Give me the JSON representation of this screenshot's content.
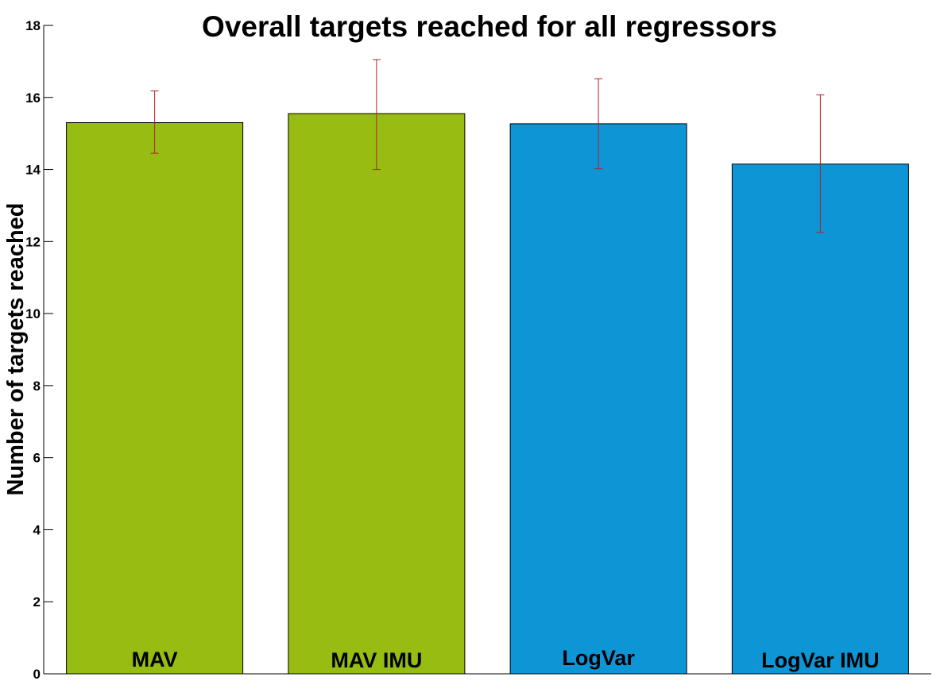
{
  "chart_data": {
    "type": "bar",
    "title": "Overall targets reached for all regressors",
    "xlabel": "",
    "ylabel": "Number of targets reached",
    "ylim": [
      0,
      18
    ],
    "yticks": [
      "0",
      "2",
      "4",
      "6",
      "8",
      "10",
      "12",
      "14",
      "16",
      "18"
    ],
    "categories": [
      "MAV",
      "MAV IMU",
      "LogVar",
      "LogVar IMU"
    ],
    "values": [
      15.3,
      15.55,
      15.27,
      14.15
    ],
    "error_low": [
      14.45,
      14.0,
      14.02,
      12.25
    ],
    "error_high": [
      16.18,
      17.05,
      16.52,
      16.07
    ],
    "bar_colors": [
      "#97bd12",
      "#97bd12",
      "#0d95d6",
      "#0d95d6"
    ],
    "error_bar_color": "#b22222",
    "grid": false,
    "legend": "none"
  }
}
